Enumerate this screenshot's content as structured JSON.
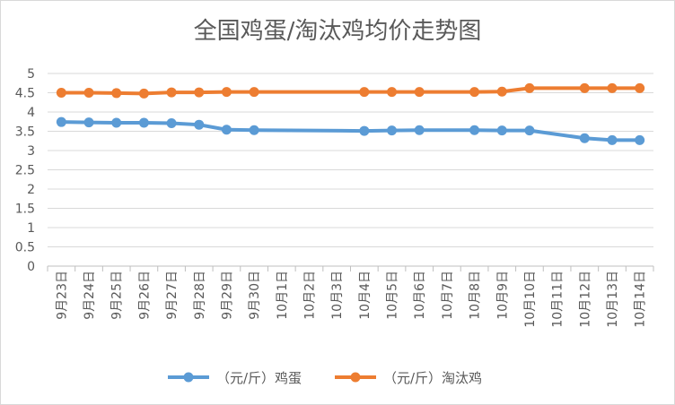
{
  "chart_data": {
    "type": "line",
    "title": "全国鸡蛋/淘汰鸡均价走势图",
    "categories": [
      "9月23日",
      "9月24日",
      "9月25日",
      "9月26日",
      "9月27日",
      "9月28日",
      "9月29日",
      "9月30日",
      "10月1日",
      "10月2日",
      "10月3日",
      "10月4日",
      "10月5日",
      "10月6日",
      "10月7日",
      "10月8日",
      "10月9日",
      "10月10日",
      "10月11日",
      "10月12日",
      "10月13日",
      "10月14日"
    ],
    "y_ticks": [
      "0",
      "0.5",
      "1",
      "1.5",
      "2",
      "2.5",
      "3",
      "3.5",
      "4",
      "4.5",
      "5"
    ],
    "ylim": [
      0,
      5
    ],
    "grid": true,
    "legend_position": "bottom",
    "series": [
      {
        "name": "（元/斤）鸡蛋",
        "color": "#5b9bd5",
        "values": [
          3.74,
          3.73,
          3.72,
          3.72,
          3.71,
          3.67,
          3.54,
          3.53,
          null,
          null,
          null,
          3.51,
          3.52,
          3.53,
          null,
          3.53,
          3.52,
          3.52,
          null,
          3.32,
          3.27,
          3.27
        ]
      },
      {
        "name": "（元/斤）淘汰鸡",
        "color": "#ed7d31",
        "values": [
          4.5,
          4.5,
          4.49,
          4.48,
          4.51,
          4.51,
          4.52,
          4.52,
          null,
          null,
          null,
          4.52,
          4.52,
          4.52,
          null,
          4.52,
          4.53,
          4.62,
          null,
          4.62,
          4.62,
          4.62
        ]
      }
    ]
  }
}
